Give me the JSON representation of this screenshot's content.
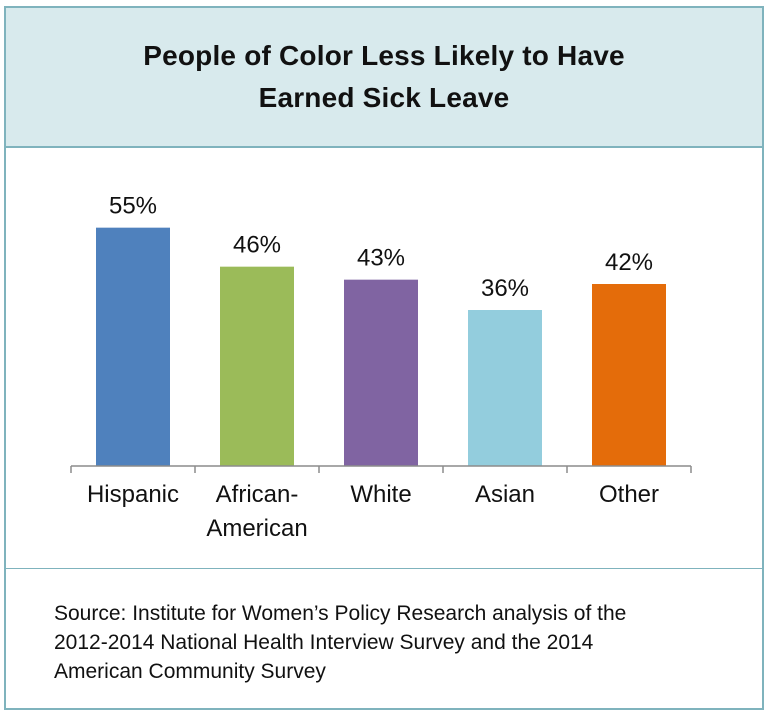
{
  "title_lines": [
    "People of Color Less Likely to Have",
    "Earned Sick Leave"
  ],
  "chart_data": {
    "type": "bar",
    "categories": [
      "Hispanic",
      "African-American",
      "White",
      "Asian",
      "Other"
    ],
    "category_label_lines": [
      [
        "Hispanic"
      ],
      [
        "African-",
        "American"
      ],
      [
        "White"
      ],
      [
        "Asian"
      ],
      [
        "Other"
      ]
    ],
    "values": [
      55,
      46,
      43,
      36,
      42
    ],
    "data_labels": [
      "55%",
      "46%",
      "43%",
      "36%",
      "42%"
    ],
    "colors": [
      "#4f81bd",
      "#9bbb59",
      "#8064a2",
      "#93cddd",
      "#e46c0a"
    ],
    "ylim": [
      0,
      60
    ],
    "grid": false,
    "legend": "none"
  },
  "source_lines": [
    "Source: Institute for Women’s Policy Research analysis of the",
    "2012-2014 National Health Interview Survey and the 2014",
    "American Community Survey"
  ]
}
